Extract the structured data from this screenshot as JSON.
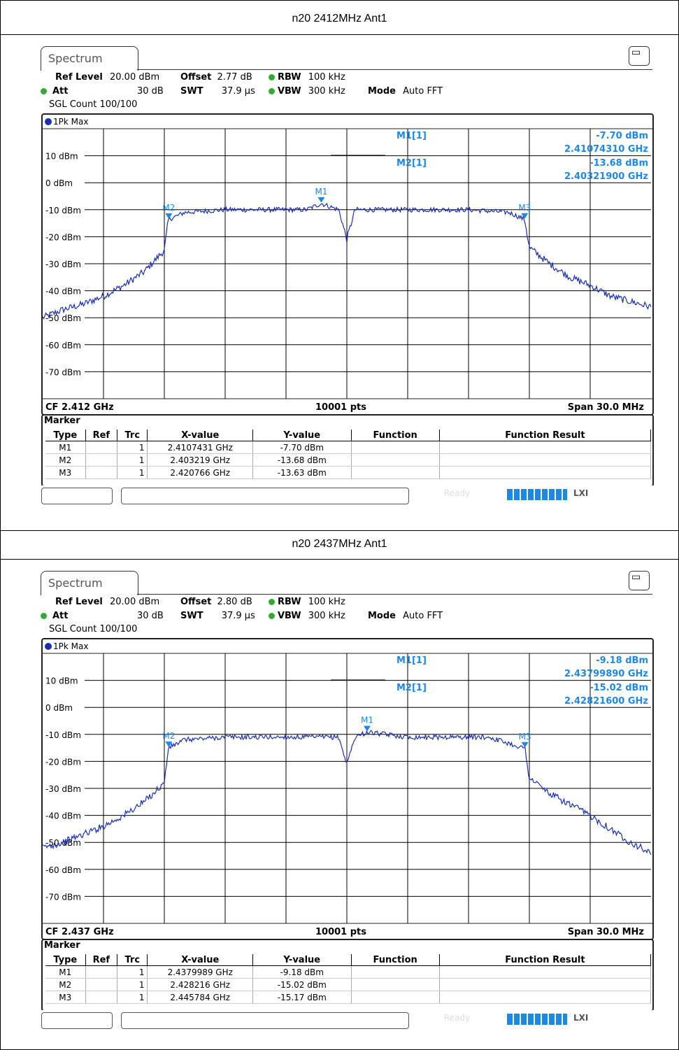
{
  "panels": [
    {
      "title": "n20 2412MHz Ant1",
      "tab": "Spectrum",
      "ref_level_label": "Ref Level",
      "ref_level": "20.00 dBm",
      "offset_label": "Offset",
      "offset": "2.77 dB",
      "rbw_label": "RBW",
      "rbw": "100 kHz",
      "att_label": "Att",
      "att": "30 dB",
      "swt_label": "SWT",
      "swt": "37.9 µs",
      "vbw_label": "VBW",
      "vbw": "300 kHz",
      "mode_label": "Mode",
      "mode": "Auto FFT",
      "sgl_count": "SGL Count 100/100",
      "trace_label": "1Pk Max",
      "cf": "CF 2.412 GHz",
      "pts": "10001 pts",
      "span": "Span 30.0 MHz",
      "m1_label": "M1[1]",
      "m1_level": "-7.70 dBm",
      "m1_freq": "2.41074310 GHz",
      "m2_label": "M2[1]",
      "m2_level": "-13.68 dBm",
      "m2_freq": "2.40321900 GHz",
      "table_title": "Marker",
      "table_headers": [
        "Type",
        "Ref",
        "Trc",
        "X-value",
        "Y-value",
        "Function",
        "Function Result"
      ],
      "rows": [
        {
          "type": "M1",
          "ref": "",
          "trc": "1",
          "x": "2.4107431 GHz",
          "y": "-7.70 dBm",
          "func": "",
          "result": ""
        },
        {
          "type": "M2",
          "ref": "",
          "trc": "1",
          "x": "2.403219 GHz",
          "y": "-13.68 dBm",
          "func": "",
          "result": ""
        },
        {
          "type": "M3",
          "ref": "",
          "trc": "1",
          "x": "2.420766 GHz",
          "y": "-13.63 dBm",
          "func": "",
          "result": ""
        }
      ],
      "status_ready": "Ready",
      "status_lxi": "LXI"
    },
    {
      "title": "n20 2437MHz Ant1",
      "tab": "Spectrum",
      "ref_level_label": "Ref Level",
      "ref_level": "20.00 dBm",
      "offset_label": "Offset",
      "offset": "2.80 dB",
      "rbw_label": "RBW",
      "rbw": "100 kHz",
      "att_label": "Att",
      "att": "30 dB",
      "swt_label": "SWT",
      "swt": "37.9 µs",
      "vbw_label": "VBW",
      "vbw": "300 kHz",
      "mode_label": "Mode",
      "mode": "Auto FFT",
      "sgl_count": "SGL Count 100/100",
      "trace_label": "1Pk Max",
      "cf": "CF 2.437 GHz",
      "pts": "10001 pts",
      "span": "Span 30.0 MHz",
      "m1_label": "M1[1]",
      "m1_level": "-9.18 dBm",
      "m1_freq": "2.43799890 GHz",
      "m2_label": "M2[1]",
      "m2_level": "-15.02 dBm",
      "m2_freq": "2.42821600 GHz",
      "table_title": "Marker",
      "table_headers": [
        "Type",
        "Ref",
        "Trc",
        "X-value",
        "Y-value",
        "Function",
        "Function Result"
      ],
      "rows": [
        {
          "type": "M1",
          "ref": "",
          "trc": "1",
          "x": "2.4379989 GHz",
          "y": "-9.18 dBm",
          "func": "",
          "result": ""
        },
        {
          "type": "M2",
          "ref": "",
          "trc": "1",
          "x": "2.428216 GHz",
          "y": "-15.02 dBm",
          "func": "",
          "result": ""
        },
        {
          "type": "M3",
          "ref": "",
          "trc": "1",
          "x": "2.445784 GHz",
          "y": "-15.17 dBm",
          "func": "",
          "result": ""
        }
      ],
      "status_ready": "Ready",
      "status_lxi": "LXI"
    }
  ],
  "chart_data": [
    {
      "type": "line",
      "ylabels": [
        "10 dBm",
        "0 dBm",
        "-10 dBm",
        "-20 dBm",
        "-30 dBm",
        "-40 dBm",
        "-50 dBm",
        "-60 dBm",
        "-70 dBm"
      ],
      "ylim": [
        -80,
        20
      ],
      "xlim_mhz": [
        2397.0,
        2427.0
      ],
      "grid": true,
      "series": [
        {
          "x_mhz": [
            2397.0,
            2398.0,
            2399.0,
            2400.0,
            2401.0,
            2402.0,
            2403.0,
            2403.2,
            2404.0,
            2406.0,
            2408.0,
            2410.0,
            2410.74,
            2411.6,
            2412.0,
            2412.4,
            2414.0,
            2416.0,
            2418.0,
            2420.0,
            2420.77,
            2421.0,
            2422.0,
            2423.0,
            2424.0,
            2425.0,
            2426.0,
            2427.0
          ],
          "y_dbm": [
            -50,
            -47,
            -45,
            -42,
            -38,
            -33,
            -25,
            -13.7,
            -11,
            -10,
            -10,
            -10,
            -7.7,
            -10,
            -21,
            -10,
            -10,
            -10,
            -10,
            -11,
            -13.6,
            -24,
            -30,
            -35,
            -38,
            -42,
            -44,
            -46
          ]
        }
      ],
      "markers": [
        {
          "name": "M1",
          "x_mhz": 2410.74,
          "y_dbm": -7.7
        },
        {
          "name": "M2",
          "x_mhz": 2403.22,
          "y_dbm": -13.68
        },
        {
          "name": "M3",
          "x_mhz": 2420.77,
          "y_dbm": -13.63
        }
      ]
    },
    {
      "type": "line",
      "ylabels": [
        "10 dBm",
        "0 dBm",
        "-10 dBm",
        "-20 dBm",
        "-30 dBm",
        "-40 dBm",
        "-50 dBm",
        "-60 dBm",
        "-70 dBm"
      ],
      "ylim": [
        -80,
        20
      ],
      "xlim_mhz": [
        2422.0,
        2452.0
      ],
      "grid": true,
      "series": [
        {
          "x_mhz": [
            2422.0,
            2423.0,
            2424.0,
            2425.0,
            2426.0,
            2427.0,
            2428.0,
            2428.2,
            2429.0,
            2431.0,
            2433.0,
            2435.0,
            2436.6,
            2437.0,
            2437.4,
            2438.0,
            2440.0,
            2442.0,
            2444.0,
            2445.78,
            2446.0,
            2447.0,
            2448.0,
            2449.0,
            2450.0,
            2451.0,
            2452.0
          ],
          "y_dbm": [
            -52,
            -50,
            -47,
            -44,
            -40,
            -35,
            -28,
            -15.0,
            -12,
            -11,
            -11,
            -11,
            -11,
            -21,
            -11,
            -9.2,
            -11,
            -11,
            -11,
            -15.2,
            -26,
            -32,
            -36,
            -40,
            -45,
            -50,
            -54
          ]
        }
      ],
      "markers": [
        {
          "name": "M1",
          "x_mhz": 2438.0,
          "y_dbm": -9.18
        },
        {
          "name": "M2",
          "x_mhz": 2428.22,
          "y_dbm": -15.02
        },
        {
          "name": "M3",
          "x_mhz": 2445.78,
          "y_dbm": -15.17
        }
      ]
    }
  ]
}
